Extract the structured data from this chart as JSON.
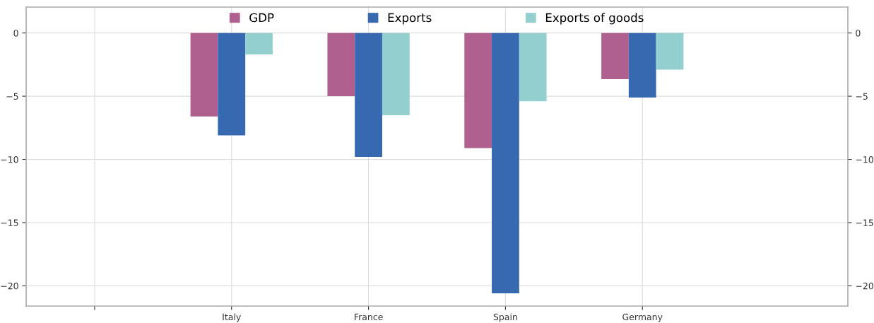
{
  "chart_data": {
    "type": "bar",
    "categories": [
      null,
      "Italy",
      "France",
      "Spain",
      "Germany",
      null
    ],
    "series": [
      {
        "name": "GDP",
        "color": "#b0608e",
        "values": [
          null,
          -6.6,
          -5.0,
          -9.1,
          -3.65,
          null
        ]
      },
      {
        "name": "Exports",
        "color": "#3669b0",
        "values": [
          null,
          -8.1,
          -9.8,
          -20.6,
          -5.1,
          null
        ]
      },
      {
        "name": "Exports of goods",
        "color": "#94cfcf",
        "values": [
          null,
          -1.7,
          -6.5,
          -5.4,
          -2.9,
          null
        ]
      }
    ],
    "ylim": [
      -21.6,
      2.05
    ],
    "yticks": [
      {
        "value": 0,
        "label": "0"
      },
      {
        "value": -5,
        "label": "−5"
      },
      {
        "value": -10,
        "label": "−10"
      },
      {
        "value": -15,
        "label": "−15"
      },
      {
        "value": -20,
        "label": "−20"
      }
    ],
    "y2lim": [
      -21.6,
      2.05
    ],
    "y2ticks": [
      {
        "value": 0,
        "label": "0"
      },
      {
        "value": -5,
        "label": "−5"
      },
      {
        "value": -10,
        "label": "−10"
      },
      {
        "value": -15,
        "label": "−15"
      },
      {
        "value": -20,
        "label": "−20"
      }
    ],
    "grid": true,
    "legend": "top"
  }
}
